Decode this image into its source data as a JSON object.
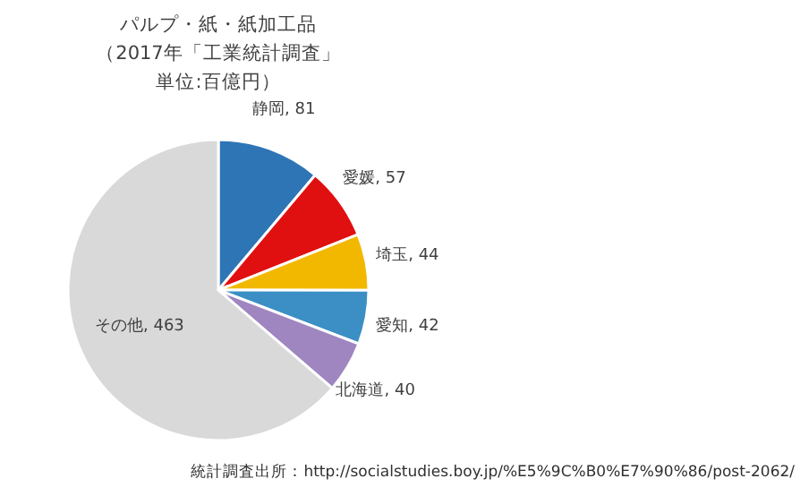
{
  "chart_data": {
    "type": "pie",
    "title": "パルプ・紙・紙加工品",
    "subtitle": "（2017年「工業統計調査」単位:百億円）",
    "categories": [
      "静岡",
      "愛媛",
      "埼玉",
      "愛知",
      "北海道",
      "その他"
    ],
    "values": [
      81,
      57,
      44,
      42,
      40,
      463
    ],
    "colors": [
      "#2e75b6",
      "#e01010",
      "#f2b800",
      "#3b8fc4",
      "#9f86c0",
      "#d9d9d9"
    ],
    "value_labels": [
      ", 81",
      ", 57",
      ", 44",
      ", 42",
      ", 40",
      ", 463"
    ],
    "annotations": [
      "統計調査出所：http://socialstudies.boy.jp/%E5%9C%B0%E7%90%86/post-2062/"
    ]
  }
}
